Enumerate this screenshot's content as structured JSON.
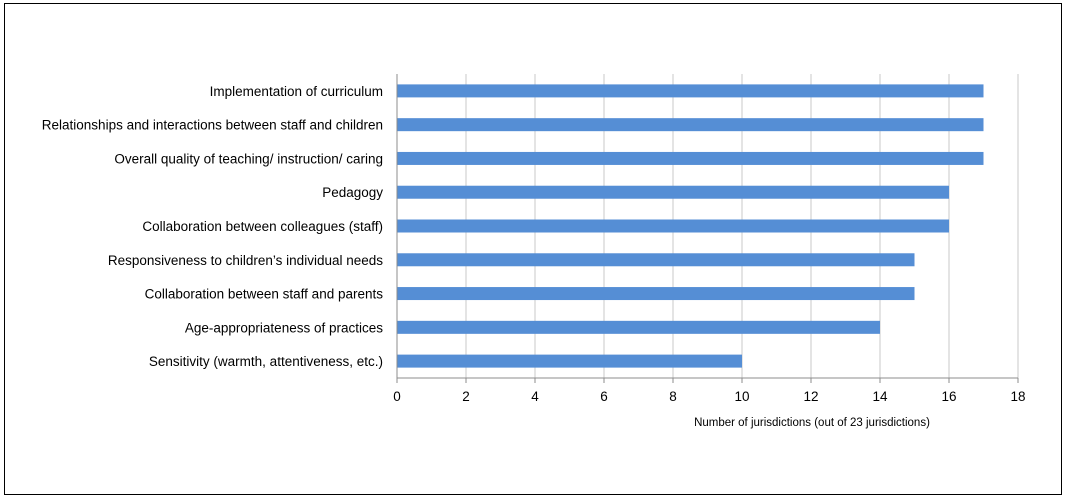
{
  "chart_data": {
    "type": "bar",
    "orientation": "horizontal",
    "categories": [
      "Implementation of curriculum",
      "Relationships and interactions between staff and children",
      "Overall quality of teaching/ instruction/ caring",
      "Pedagogy",
      "Collaboration between colleagues (staff)",
      "Responsiveness to children’s individual needs",
      "Collaboration between staff and parents",
      "Age-appropriateness of practices",
      "Sensitivity (warmth, attentiveness, etc.)"
    ],
    "values": [
      17,
      17,
      17,
      16,
      16,
      15,
      15,
      14,
      10
    ],
    "title": "",
    "xlabel": "Number of  jurisdictions (out of 23  jurisdictions)",
    "ylabel": "",
    "xlim": [
      0,
      18
    ],
    "xticks": [
      0,
      2,
      4,
      6,
      8,
      10,
      12,
      14,
      16,
      18
    ],
    "xtick_labels": [
      "0",
      "2",
      "4",
      "6",
      "8",
      "10",
      "12",
      "14",
      "16",
      "18"
    ],
    "grid": "vertical",
    "legend": "none",
    "bar_color": "#558ED5",
    "grid_color": "#c8c8c8"
  }
}
